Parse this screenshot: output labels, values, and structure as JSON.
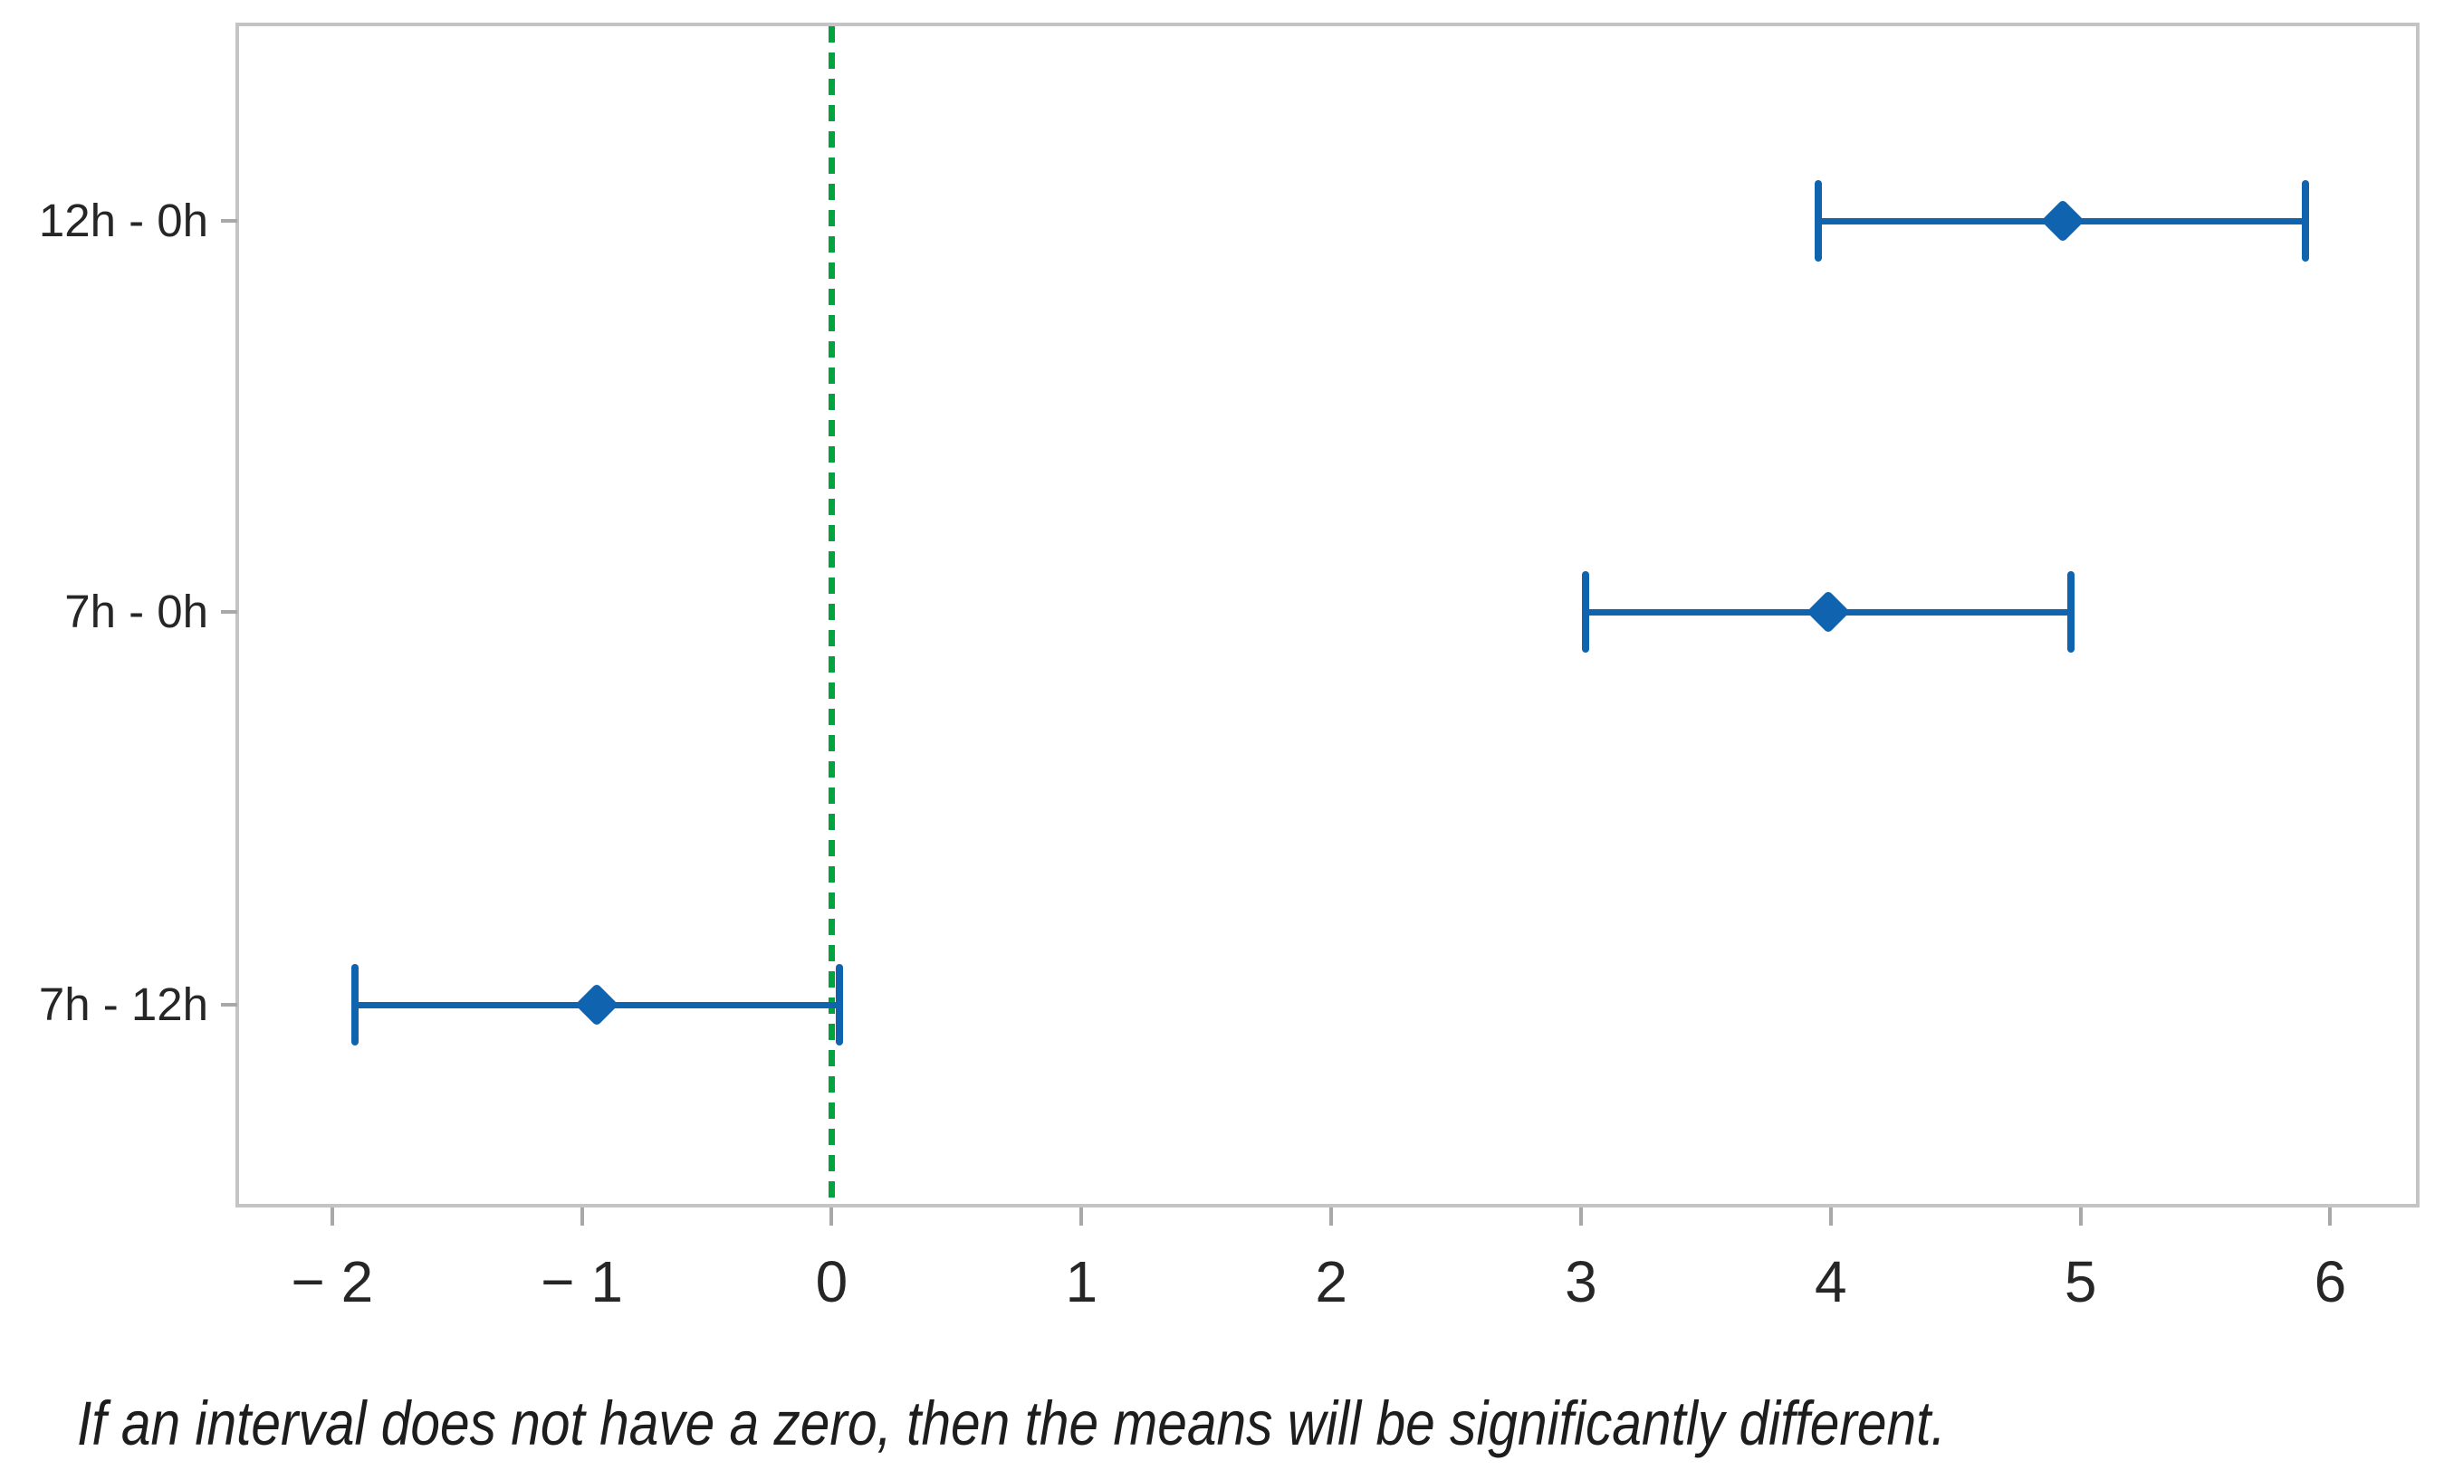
{
  "chart_data": {
    "type": "interval",
    "subtype": "confidence-interval-comparison-plot",
    "orientation": "horizontal",
    "title": "",
    "xlabel": "",
    "ylabel": "",
    "categories": [
      "12h - 0h",
      "7h - 0h",
      "7h - 12h"
    ],
    "series": [
      {
        "name": "difference-of-means-intervals",
        "marker": "diamond",
        "points": [
          {
            "label": "12h - 0h",
            "low": 3.95,
            "mid": 4.93,
            "high": 5.9
          },
          {
            "label": "7h - 0h",
            "low": 3.02,
            "mid": 3.99,
            "high": 4.96
          },
          {
            "label": "7h - 12h",
            "low": -1.91,
            "mid": -0.94,
            "high": 0.03
          }
        ]
      }
    ],
    "x_ticks": {
      "values": [
        -2,
        -1,
        0,
        1,
        2,
        3,
        4,
        5,
        6
      ],
      "labels": [
        "− 2",
        "− 1",
        "0",
        "1",
        "2",
        "3",
        "4",
        "5",
        "6"
      ]
    },
    "xlim": [
      -2.38,
      6.35
    ],
    "grid": false,
    "legend": "none",
    "reference_line": {
      "x": 0,
      "style": "dashed",
      "orientation": "vertical"
    },
    "colors": {
      "interval": "#1063AE",
      "reference_line": "#00A43F",
      "frame": "#C4C4C4",
      "tick": "#A8A8A8"
    },
    "footnote": "If an interval does not have a zero, then the means will be significantly different."
  }
}
